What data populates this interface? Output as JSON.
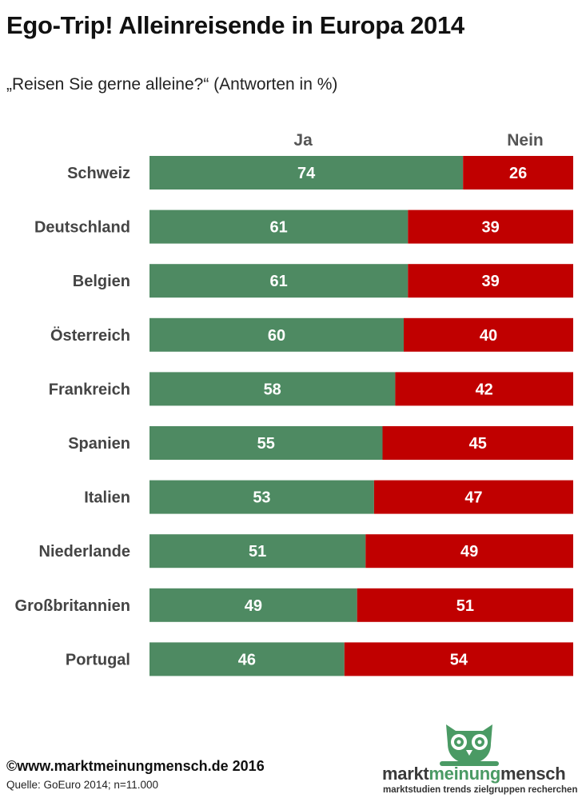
{
  "header": {
    "title": "Ego-Trip! Alleinreisende in Europa 2014",
    "subtitle": "„Reisen Sie gerne alleine?“ (Antworten in %)"
  },
  "chart_data": {
    "type": "bar",
    "orientation": "horizontal",
    "stacked": true,
    "categories": [
      "Schweiz",
      "Deutschland",
      "Belgien",
      "Österreich",
      "Frankreich",
      "Spanien",
      "Italien",
      "Niederlande",
      "Großbritannien",
      "Portugal"
    ],
    "series": [
      {
        "name": "Ja",
        "color": "#4e8a62",
        "values": [
          74,
          61,
          61,
          60,
          58,
          55,
          53,
          51,
          49,
          46
        ]
      },
      {
        "name": "Nein",
        "color": "#c00000",
        "values": [
          26,
          39,
          39,
          40,
          42,
          45,
          47,
          49,
          51,
          54
        ]
      }
    ],
    "xlim": [
      0,
      100
    ],
    "grid": false,
    "legend": "top"
  },
  "footer": {
    "copyright": "©www.marktmeinungmensch.de 2016",
    "source": "Quelle: GoEuro 2014; n=11.000"
  },
  "logo": {
    "word_1": "markt",
    "word_2": "meinung",
    "word_3": "mensch",
    "tagline": "marktstudien trends zielgruppen recherchen",
    "color": "#4a9a64"
  }
}
